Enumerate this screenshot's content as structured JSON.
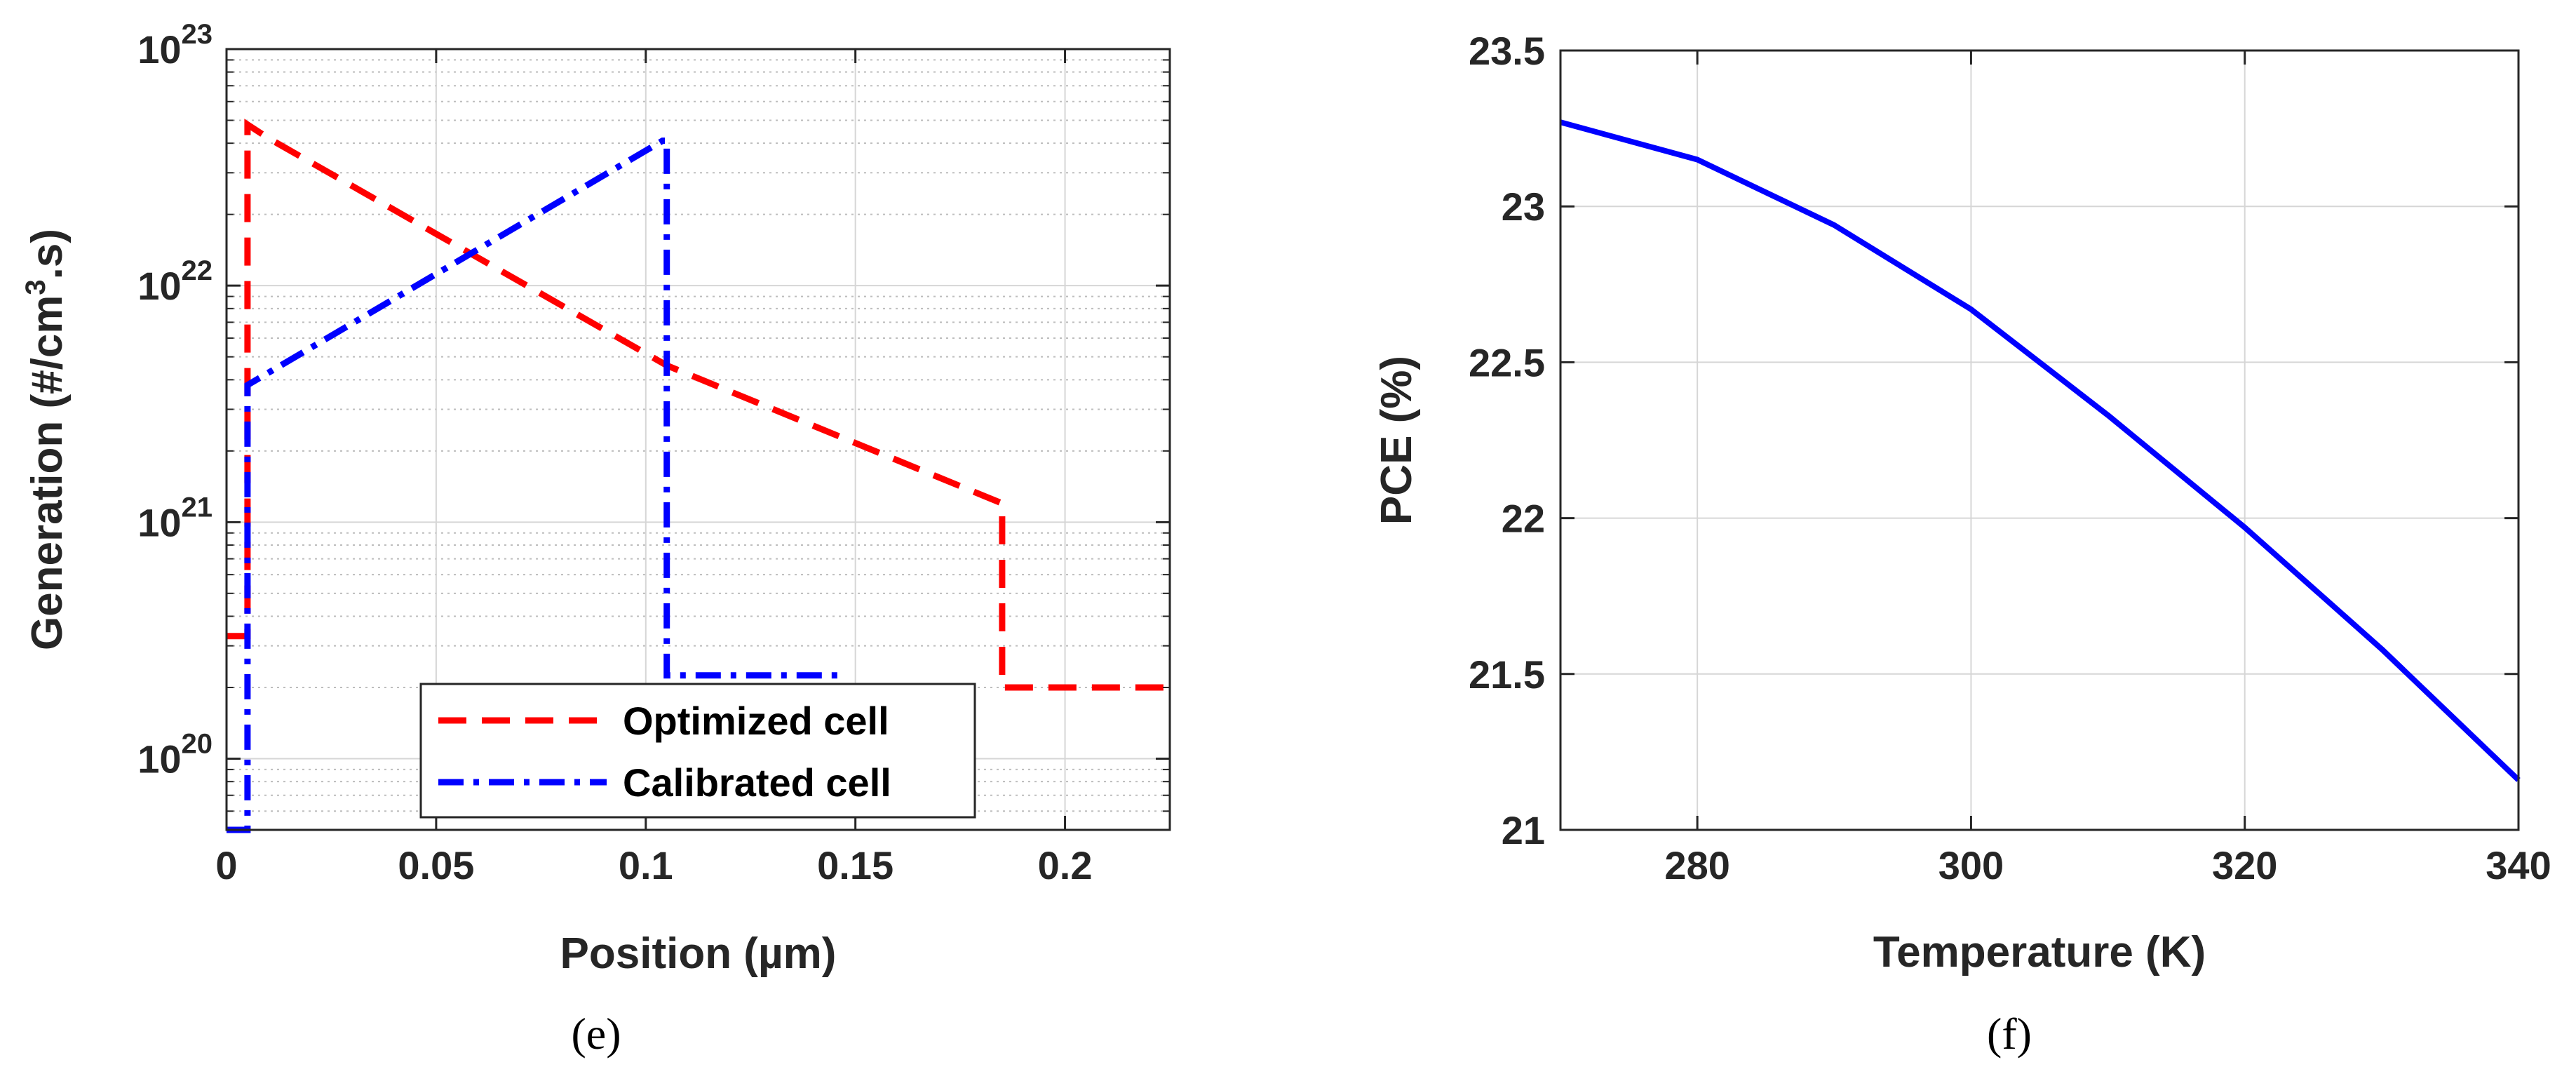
{
  "chart_data": [
    {
      "type": "line",
      "panel_label": "(e)",
      "xlabel": "Position (µm)",
      "ylabel_parts": [
        "Generation (#/cm",
        "3",
        ".s)"
      ],
      "xlim": [
        0,
        0.225
      ],
      "ylim": [
        5e+19,
        1e+23
      ],
      "yscale": "log",
      "grid": true,
      "minor_grid": true,
      "xticks": [
        0,
        0.05,
        0.1,
        0.15,
        0.2
      ],
      "xtick_labels": [
        "0",
        "0.05",
        "0.1",
        "0.15",
        "0.2"
      ],
      "yticks": [
        1e+20,
        1e+21,
        1e+22,
        1e+23
      ],
      "ytick_base": "10",
      "ytick_exponents": [
        "20",
        "21",
        "22",
        "23"
      ],
      "legend_position": "bottom-right",
      "series": [
        {
          "name": "Optimized cell",
          "color": "#ff0000",
          "style": "dashed",
          "x": [
            0,
            0.005,
            0.005,
            0.01,
            0.105,
            0.185,
            0.185,
            0.225
          ],
          "y": [
            3.3e+20,
            3.3e+20,
            4.8e+22,
            4.2e+22,
            4.6e+21,
            1.2e+21,
            2e+20,
            2e+20
          ]
        },
        {
          "name": "Calibrated cell",
          "color": "#0000ff",
          "style": "dashdot",
          "x": [
            0,
            0.005,
            0.005,
            0.104,
            0.105,
            0.105,
            0.148
          ],
          "y": [
            5e+19,
            5e+19,
            3.8e+21,
            4.1e+22,
            4.1e+22,
            2.25e+20,
            2.25e+20
          ]
        }
      ]
    },
    {
      "type": "line",
      "panel_label": "(f)",
      "xlabel": "Temperature (K)",
      "ylabel": "PCE (%)",
      "xlim": [
        270,
        340
      ],
      "ylim": [
        21,
        23.5
      ],
      "grid": true,
      "xticks": [
        280,
        300,
        320,
        340
      ],
      "xtick_labels": [
        "280",
        "300",
        "320",
        "340"
      ],
      "yticks": [
        21,
        21.5,
        22,
        22.5,
        23,
        23.5
      ],
      "ytick_labels": [
        "21",
        "21.5",
        "22",
        "22.5",
        "23",
        "23.5"
      ],
      "series": [
        {
          "name": "PCE",
          "color": "#0000ff",
          "style": "solid",
          "x": [
            270,
            280,
            290,
            300,
            310,
            320,
            330,
            340
          ],
          "y": [
            23.27,
            23.15,
            22.94,
            22.67,
            22.33,
            21.97,
            21.58,
            21.16
          ]
        }
      ]
    }
  ]
}
